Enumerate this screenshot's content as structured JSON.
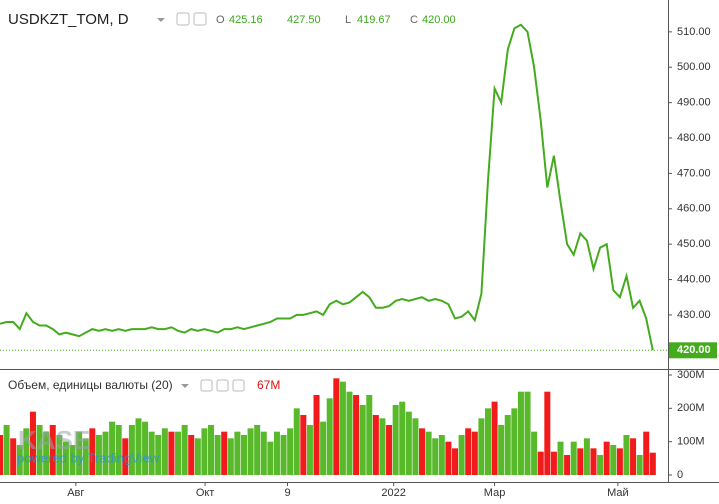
{
  "chart_data": [
    {
      "type": "line",
      "title": "USDKZT_TOM, D",
      "color": "#45ab1e",
      "ohlc": [
        {
          "key": "O",
          "value": 425.16
        },
        {
          "value": {
            "value": 427.5,
            "label": "427.50"
          }
        },
        {
          "key": "L",
          "value": 419.67
        },
        {
          "key": "C",
          "value": {
            "value": 420,
            "label": "420.00"
          }
        }
      ],
      "values": [
        427.5,
        428,
        428,
        426,
        430.5,
        428,
        427,
        427,
        426,
        424.5,
        425,
        424.5,
        424,
        425,
        426,
        425.5,
        426,
        425.5,
        426,
        425.5,
        426,
        426,
        426,
        426.5,
        426,
        426,
        426.5,
        425.5,
        425,
        426,
        425.5,
        426,
        425.5,
        425,
        426,
        426,
        426.5,
        426,
        426.5,
        427,
        427.5,
        428,
        429,
        429,
        429,
        430,
        430,
        430.5,
        431,
        430,
        433,
        434,
        433,
        433.5,
        435,
        436.5,
        435,
        432,
        432,
        432.5,
        434,
        434.5,
        434,
        434.5,
        435,
        434,
        434.5,
        434,
        433,
        429,
        429.5,
        431,
        428.5,
        436,
        468,
        494,
        490,
        505,
        511,
        512,
        510,
        500,
        485,
        466,
        475,
        462,
        450,
        447,
        453,
        451,
        443,
        449,
        450,
        437,
        435,
        441,
        432,
        434,
        429,
        420
      ],
      "price_line": {
        "value": 420,
        "label": "420.00"
      },
      "ylim": [
        415,
        519
      ],
      "yticks": [
        {
          "value": 430,
          "label": "430.00"
        },
        {
          "value": 440,
          "label": "440.00"
        },
        {
          "value": 450,
          "label": "450.00"
        },
        {
          "value": 460,
          "label": "460.00"
        },
        {
          "value": 470,
          "label": "470.00"
        },
        {
          "value": 480,
          "label": "480.00"
        },
        {
          "value": 490,
          "label": "490.00"
        },
        {
          "value": 500,
          "label": "500.00"
        },
        {
          "value": 510,
          "label": "510.00"
        }
      ],
      "xlim": [
        0,
        101.3
      ],
      "xticks": [
        {
          "value": 11.5,
          "label": "Авг"
        },
        {
          "value": 31.1,
          "label": "Окт"
        },
        {
          "value": 43.6,
          "label": "9"
        },
        {
          "value": 59.7,
          "label": "2022"
        },
        {
          "value": 75,
          "label": "Мар"
        },
        {
          "value": 93.7,
          "label": "Май"
        }
      ]
    },
    {
      "type": "bar",
      "title": "Объем, единицы валюты (20)",
      "last": {
        "value": 67,
        "label": "67M"
      },
      "values": [
        120,
        150,
        110,
        90,
        140,
        190,
        150,
        130,
        150,
        120,
        100,
        90,
        130,
        110,
        140,
        120,
        130,
        160,
        150,
        110,
        150,
        170,
        160,
        130,
        120,
        140,
        130,
        130,
        150,
        120,
        110,
        140,
        150,
        120,
        130,
        110,
        130,
        120,
        140,
        150,
        130,
        100,
        130,
        120,
        140,
        200,
        180,
        150,
        240,
        160,
        230,
        290,
        280,
        250,
        240,
        210,
        240,
        180,
        170,
        150,
        210,
        220,
        190,
        170,
        140,
        130,
        110,
        120,
        100,
        80,
        120,
        140,
        130,
        170,
        200,
        220,
        150,
        180,
        200,
        250,
        250,
        130,
        70,
        250,
        70,
        100,
        60,
        100,
        80,
        110,
        80,
        60,
        100,
        90,
        80,
        120,
        110,
        60,
        130,
        67
      ],
      "colors": [
        "#f21b1b",
        "#58b92a",
        "#f21b1b",
        "#58b92a",
        "#58b92a",
        "#f21b1b",
        "#58b92a",
        "#58b92a",
        "#f21b1b",
        "#58b92a",
        "#58b92a",
        "#58b92a",
        "#58b92a",
        "#58b92a",
        "#f21b1b",
        "#58b92a",
        "#58b92a",
        "#58b92a",
        "#58b92a",
        "#f21b1b",
        "#58b92a",
        "#58b92a",
        "#58b92a",
        "#58b92a",
        "#58b92a",
        "#58b92a",
        "#f21b1b",
        "#58b92a",
        "#58b92a",
        "#f21b1b",
        "#58b92a",
        "#58b92a",
        "#58b92a",
        "#58b92a",
        "#f21b1b",
        "#58b92a",
        "#58b92a",
        "#58b92a",
        "#58b92a",
        "#58b92a",
        "#58b92a",
        "#58b92a",
        "#58b92a",
        "#58b92a",
        "#58b92a",
        "#58b92a",
        "#f21b1b",
        "#58b92a",
        "#f21b1b",
        "#58b92a",
        "#58b92a",
        "#f21b1b",
        "#58b92a",
        "#58b92a",
        "#f21b1b",
        "#58b92a",
        "#58b92a",
        "#f21b1b",
        "#58b92a",
        "#f21b1b",
        "#58b92a",
        "#58b92a",
        "#58b92a",
        "#58b92a",
        "#f21b1b",
        "#58b92a",
        "#58b92a",
        "#58b92a",
        "#f21b1b",
        "#f21b1b",
        "#58b92a",
        "#f21b1b",
        "#f21b1b",
        "#58b92a",
        "#58b92a",
        "#f21b1b",
        "#58b92a",
        "#58b92a",
        "#58b92a",
        "#58b92a",
        "#58b92a",
        "#58b92a",
        "#f21b1b",
        "#f21b1b",
        "#f21b1b",
        "#58b92a",
        "#f21b1b",
        "#58b92a",
        "#f21b1b",
        "#58b92a",
        "#f21b1b",
        "#58b92a",
        "#f21b1b",
        "#58b92a",
        "#f21b1b",
        "#58b92a",
        "#f21b1b",
        "#58b92a",
        "#f21b1b",
        "#f21b1b"
      ],
      "ylim": [
        -21,
        315
      ],
      "yticks": [
        0,
        {
          "value": 100,
          "label": "100M"
        },
        {
          "value": 200,
          "label": "200M"
        },
        {
          "value": 300,
          "label": "300M"
        }
      ]
    }
  ],
  "watermark": {
    "logo": "KASE",
    "text": "powered by TradingView"
  }
}
